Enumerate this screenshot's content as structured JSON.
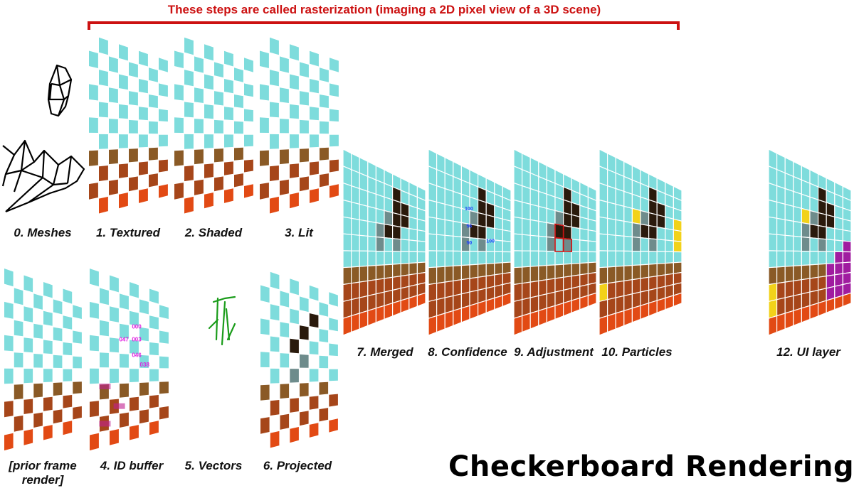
{
  "header": "These steps are called rasterization (imaging a 2D pixel view of a 3D scene)",
  "title": "Checkerboard Rendering",
  "colors": {
    "cyan": "#7edcdc",
    "dark": "#2a1a0c",
    "brown": "#8a5a26",
    "orange_brown": "#a6461a",
    "orange": "#e24a14",
    "grey": "#6e8c8c",
    "yellow": "#f2d21a",
    "magenta": "#a01ca0",
    "bracket": "#cc1111",
    "vectors": "#1a9c1a"
  },
  "panels": [
    {
      "id": "meshes",
      "label": "0. Meshes",
      "icon": "wireframe-mesh-icon"
    },
    {
      "id": "textured",
      "label": "1. Textured"
    },
    {
      "id": "shaded",
      "label": "2. Shaded"
    },
    {
      "id": "lit",
      "label": "3. Lit"
    },
    {
      "id": "prior",
      "label": "[prior frame render]"
    },
    {
      "id": "idbuffer",
      "label": "4. ID buffer"
    },
    {
      "id": "vectors",
      "label": "5. Vectors",
      "icon": "motion-vectors-icon"
    },
    {
      "id": "projected",
      "label": "6. Projected"
    },
    {
      "id": "merged",
      "label": "7. Merged"
    },
    {
      "id": "confidence",
      "label": "8. Confidence"
    },
    {
      "id": "adjustment",
      "label": "9. Adjustment"
    },
    {
      "id": "particles",
      "label": "10. Particles"
    },
    {
      "id": "uilayer",
      "label": "12. UI layer"
    }
  ],
  "prior_label_lines": [
    "[prior frame",
    "render]"
  ],
  "id_buffer_codes": [
    "000",
    "047",
    "003",
    "046",
    "038"
  ],
  "confidence_codes": [
    "100",
    "56",
    "50",
    "100"
  ]
}
